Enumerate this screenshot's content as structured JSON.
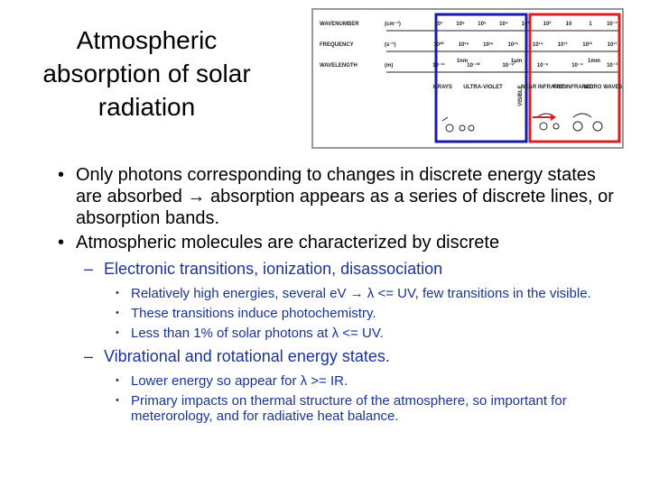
{
  "title": {
    "lines": [
      "Atmospheric",
      "absorption of solar",
      "radiation"
    ]
  },
  "figure": {
    "rows": [
      {
        "label": "WAVENUMBER",
        "unit": "(cm⁻¹)",
        "ticks": [
          "10⁷",
          "10⁶",
          "10⁵",
          "10⁴",
          "10³",
          "10²",
          "10",
          "1",
          "10⁻¹"
        ]
      },
      {
        "label": "FREQUENCY",
        "unit": "(s⁻¹)",
        "ticks": [
          "10²⁰",
          "10¹⁸",
          "10¹⁶",
          "10¹⁵",
          "10¹⁴",
          "10¹³",
          "10¹²",
          "10¹¹"
        ]
      },
      {
        "label": "WAVELENGTH",
        "unit": "(m)",
        "ticks": [
          "10⁻¹¹",
          "10⁻¹⁰",
          "10⁻⁸",
          "10⁻⁶",
          "10⁻⁴",
          "10⁻³"
        ]
      }
    ],
    "marks": [
      "1nm",
      "1μm",
      "1mm"
    ],
    "regions": [
      "X RAYS",
      "ULTRA-VIOLET",
      "VISIBLE",
      "NEAR INFRARED",
      "FAR INFRARED",
      "MICRO WAVES"
    ]
  },
  "bullets": [
    {
      "level": 1,
      "text": "Only photons corresponding to changes in discrete energy states are absorbed → absorption appears as a series of discrete lines, or absorption bands."
    },
    {
      "level": 1,
      "text": "Atmospheric molecules are characterized by discrete"
    },
    {
      "level": 2,
      "text": "Electronic transitions, ionization, disassociation"
    },
    {
      "level": 3,
      "text": "Relatively high energies, several eV → λ <= UV, few transitions in the visible."
    },
    {
      "level": 3,
      "text": "These transitions induce photochemistry."
    },
    {
      "level": 3,
      "text": "Less than 1% of solar photons at λ <= UV."
    },
    {
      "level": 2,
      "text": "Vibrational and rotational energy states."
    },
    {
      "level": 3,
      "text": "Lower energy so appear for λ >= IR."
    },
    {
      "level": 3,
      "text": "Primary impacts on thermal structure of the atmosphere, so important for meterorology, and for radiative heat balance."
    }
  ]
}
